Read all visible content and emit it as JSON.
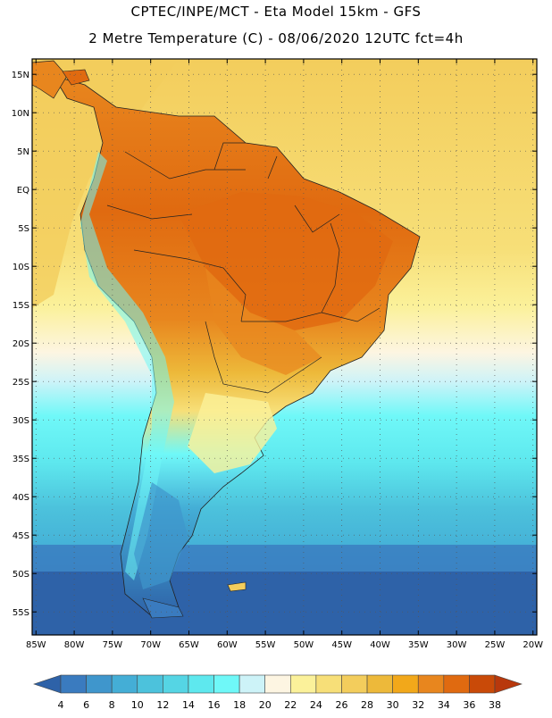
{
  "header": {
    "title_line1": "CPTEC/INPE/MCT -  Eta Model 15km - GFS",
    "title_line2": "2 Metre Temperature (C) - 08/06/2020 12UTC fct=4h"
  },
  "map": {
    "lat_labels": [
      "15N",
      "10N",
      "5N",
      "EQ",
      "5S",
      "10S",
      "15S",
      "20S",
      "25S",
      "30S",
      "35S",
      "40S",
      "45S",
      "50S",
      "55S"
    ],
    "lat_values": [
      15,
      10,
      5,
      0,
      -5,
      -10,
      -15,
      -20,
      -25,
      -30,
      -35,
      -40,
      -45,
      -50,
      -55
    ],
    "lon_labels": [
      "85W",
      "80W",
      "75W",
      "70W",
      "65W",
      "60W",
      "55W",
      "50W",
      "45W",
      "40W",
      "35W",
      "30W",
      "25W",
      "20W"
    ],
    "lon_values": [
      -85,
      -80,
      -75,
      -70,
      -65,
      -60,
      -55,
      -50,
      -45,
      -40,
      -35,
      -30,
      -25,
      -20
    ],
    "lon_range": [
      -85.5,
      -19.5
    ],
    "lat_range": [
      -58,
      17
    ]
  },
  "colorbar": {
    "labels": [
      "4",
      "6",
      "8",
      "10",
      "12",
      "14",
      "16",
      "18",
      "20",
      "22",
      "24",
      "26",
      "28",
      "30",
      "32",
      "34",
      "36",
      "38"
    ],
    "colors": [
      "#2e62a8",
      "#3a7bbf",
      "#3f96cc",
      "#44aed6",
      "#4cc2dc",
      "#55d5e4",
      "#5ee8ee",
      "#6ff8f8",
      "#cdf3f8",
      "#fdf5e2",
      "#fbf19a",
      "#f7df78",
      "#f3cd5c",
      "#edb93a",
      "#f2a81a",
      "#e8861e",
      "#e06a10",
      "#c94a08",
      "#b8380c"
    ]
  }
}
